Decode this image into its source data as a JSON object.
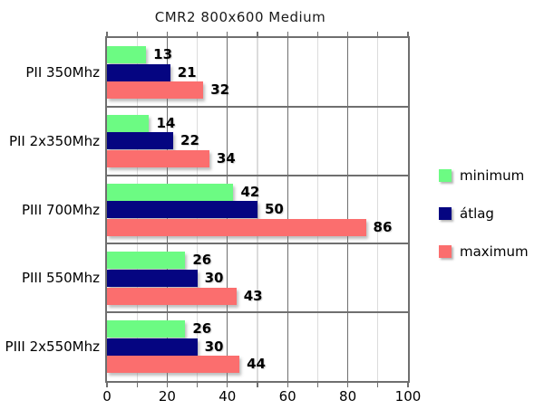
{
  "title": "CMR2 800x600 Medium",
  "chart_data": {
    "type": "bar",
    "orientation": "horizontal",
    "title": "CMR2 800x600 Medium",
    "categories": [
      "PII 350Mhz",
      "PII 2x350Mhz",
      "PIII 700Mhz",
      "PIII 550Mhz",
      "PIII 2x550Mhz"
    ],
    "series": [
      {
        "name": "minimum",
        "color": "#6cfb83",
        "values": [
          13,
          14,
          42,
          26,
          26
        ]
      },
      {
        "name": "átlag",
        "color": "#050581",
        "values": [
          21,
          22,
          50,
          30,
          30
        ]
      },
      {
        "name": "maximum",
        "color": "#fb6e6e",
        "values": [
          32,
          34,
          86,
          43,
          44
        ]
      }
    ],
    "xlim": [
      0,
      100
    ],
    "x_ticks": [
      0,
      20,
      40,
      60,
      80,
      100
    ],
    "minor_tick_step": 10,
    "grid": true,
    "value_labels": true,
    "legend_position": "right"
  },
  "colors": {
    "frame": "#6f6f6f",
    "grid_major": "#6f6f6f",
    "grid_minor": "#dcdcdc",
    "background": "#ffffff",
    "text": "#000000"
  }
}
